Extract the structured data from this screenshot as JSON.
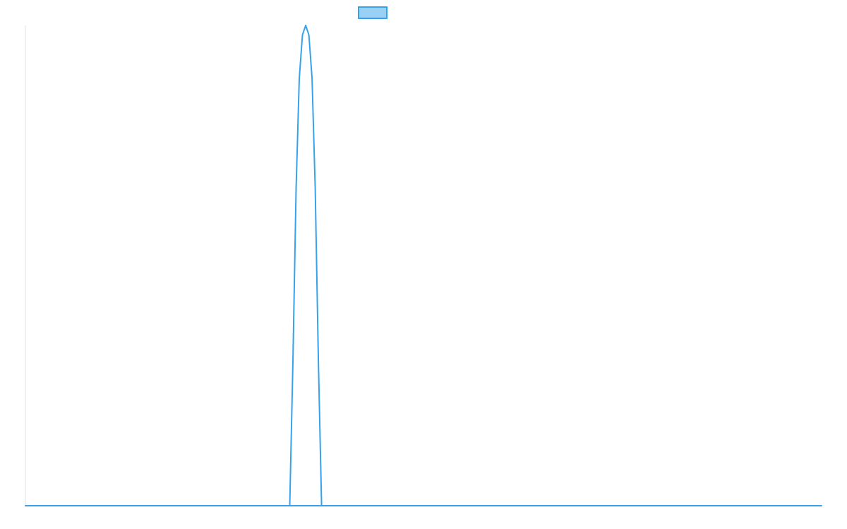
{
  "chart_data": {
    "type": "line",
    "title": "",
    "xlabel": "",
    "ylabel": "",
    "legend": {
      "placement": "top",
      "entries": [
        {
          "label": "",
          "color": "#36a2eb",
          "fill": "#9ad0f5"
        }
      ]
    },
    "grid": false,
    "xlim": [
      0,
      100
    ],
    "ylim": [
      0,
      1
    ],
    "series": [
      {
        "color": "#36a2eb",
        "x": [
          0,
          33.2,
          33.6,
          34.0,
          34.4,
          34.8,
          35.2,
          35.6,
          36.0,
          36.4,
          36.8,
          37.2,
          100
        ],
        "values": [
          0,
          0,
          0.3,
          0.66,
          0.89,
          0.98,
          1.0,
          0.98,
          0.89,
          0.66,
          0.3,
          0,
          0
        ]
      }
    ]
  },
  "colors": {
    "series": "#36a2eb",
    "legend_fill": "#9ad0f5",
    "axis": "#e6e6e6",
    "background": "#ffffff"
  }
}
